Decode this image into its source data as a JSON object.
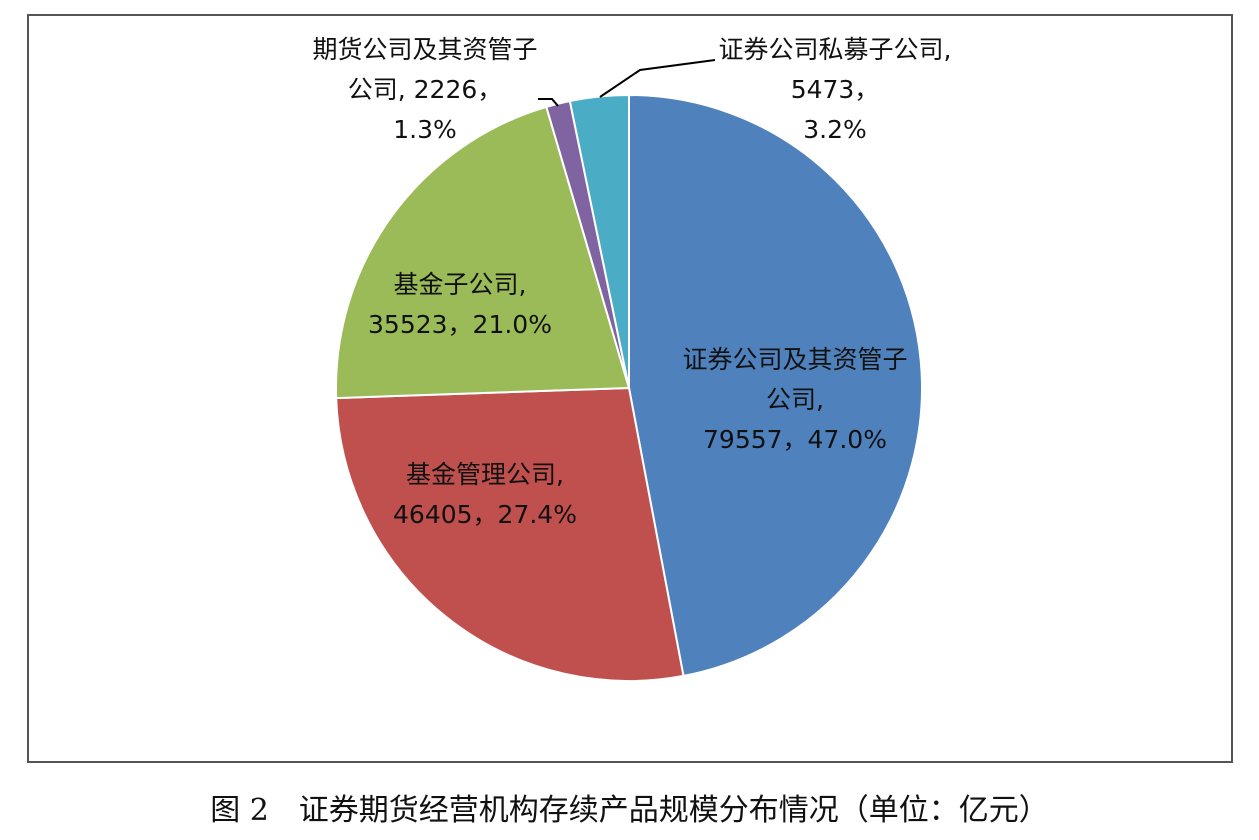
{
  "chart_data": {
    "type": "pie",
    "title": "图 2　证券期货经营机构存续产品规模分布情况（单位：亿元）",
    "categories": [
      "证券公司及其资管子公司,",
      "基金管理公司,",
      "基金子公司,",
      "期货公司及其资管子公司,",
      "证券公司私募子公司,"
    ],
    "values": [
      79557,
      46405,
      35523,
      2226,
      5473
    ],
    "value_labels": [
      "79557，",
      "46405，",
      "35523，",
      "2226，",
      "5473，"
    ],
    "percentages": [
      47.0,
      27.4,
      21.0,
      1.3,
      3.2
    ],
    "percentage_labels": [
      "47.0%",
      "27.4%",
      "21.0%",
      "1.3%",
      "3.2%"
    ],
    "colors": [
      "#4f81bd",
      "#c0504d",
      "#9bbb59",
      "#8064a2",
      "#4bacc6"
    ]
  }
}
